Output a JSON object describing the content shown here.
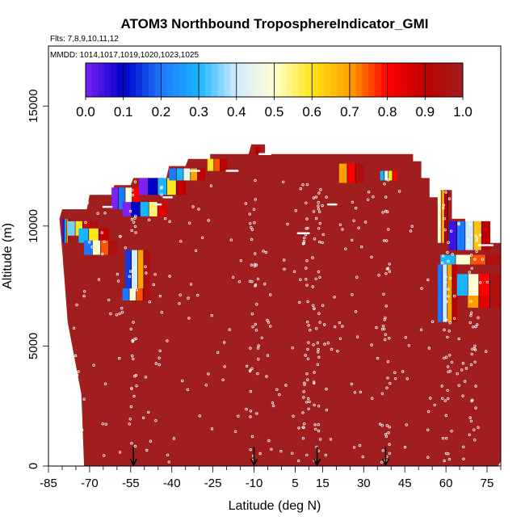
{
  "chart_data": {
    "type": "heatmap",
    "title": "ATOM3 Northbound TroposphereIndicator_GMI",
    "flights_note": "Flts: 7,8,9,10,11,12",
    "dates_note": "MMDD: 1014,1017,1019,1020,1023,1025",
    "xlabel": "Latitude (deg N)",
    "ylabel": "Altitude (m)",
    "xlim": [
      -85,
      80
    ],
    "ylim": [
      0,
      17500
    ],
    "x_ticks": [
      -85,
      -70,
      -55,
      -40,
      -25,
      -10,
      5,
      15,
      30,
      45,
      60,
      75
    ],
    "y_ticks": [
      0,
      5000,
      10000,
      15000
    ],
    "colorbar": {
      "ticks": [
        "0.0",
        "0.1",
        "0.2",
        "0.3",
        "0.4",
        "0.5",
        "0.6",
        "0.7",
        "0.8",
        "0.9",
        "1.0"
      ],
      "range": [
        0,
        1
      ],
      "colors": [
        "#7b22f5",
        "#0000c8",
        "#1e78ff",
        "#19b4ff",
        "#d2ebff",
        "#ffffd2",
        "#ffe619",
        "#ffa000",
        "#ff0000",
        "#be0000",
        "#a01e1e"
      ]
    },
    "background_value": 1.0,
    "background_color": "#a01e1e",
    "profile_color": "#ffffff",
    "arrow_latitudes": [
      -54,
      -10,
      13,
      38
    ],
    "color_bands": [
      {
        "lat": [
          -80,
          -77
        ],
        "alt": [
          10300,
          9300
        ],
        "values": [
          0.05,
          0.3,
          0.7,
          0.95
        ]
      },
      {
        "lat": [
          -78,
          -67
        ],
        "alt": [
          10200,
          9600
        ],
        "values": [
          0.35,
          0.6,
          0.85,
          0.95
        ]
      },
      {
        "lat": [
          -74,
          -63
        ],
        "alt": [
          9900,
          9300
        ],
        "values": [
          0.3,
          0.6,
          0.9
        ]
      },
      {
        "lat": [
          -72,
          -60
        ],
        "alt": [
          9400,
          8800
        ],
        "values": [
          0.2,
          0.5,
          0.75,
          0.95
        ]
      },
      {
        "lat": [
          -62,
          -52
        ],
        "alt": [
          11600,
          10700
        ],
        "values": [
          0.0,
          0.2,
          0.5,
          0.8
        ]
      },
      {
        "lat": [
          -58,
          -42
        ],
        "alt": [
          11000,
          10400
        ],
        "values": [
          0.0,
          0.1,
          0.3,
          0.55,
          0.85
        ]
      },
      {
        "lat": [
          -57,
          -48
        ],
        "alt": [
          9000,
          7400
        ],
        "values": [
          0.15,
          0.4,
          0.7,
          0.95
        ]
      },
      {
        "lat": [
          -58,
          -48
        ],
        "alt": [
          7400,
          6900
        ],
        "values": [
          0.2,
          0.5,
          0.75,
          0.95
        ]
      },
      {
        "lat": [
          -52,
          -35
        ],
        "alt": [
          12000,
          11300
        ],
        "values": [
          0.0,
          0.1,
          0.3,
          0.6,
          0.9
        ]
      },
      {
        "lat": [
          -41,
          -28
        ],
        "alt": [
          12400,
          11900
        ],
        "values": [
          0.2,
          0.3,
          0.45,
          0.7,
          0.9
        ]
      },
      {
        "lat": [
          -27,
          -20
        ],
        "alt": [
          12800,
          12300
        ],
        "values": [
          0.6,
          0.75,
          0.9
        ]
      },
      {
        "lat": [
          -10,
          -8
        ],
        "alt": [
          13300,
          13000
        ],
        "values": [
          0.85,
          0.9
        ]
      },
      {
        "lat": [
          21,
          30
        ],
        "alt": [
          12600,
          11800
        ],
        "values": [
          0.7,
          0.8,
          0.95
        ]
      },
      {
        "lat": [
          36,
          42
        ],
        "alt": [
          12300,
          11900
        ],
        "values": [
          0.3,
          0.45,
          0.6,
          0.8
        ]
      },
      {
        "lat": [
          57,
          62
        ],
        "alt": [
          11500,
          9300
        ],
        "values": [
          0.5,
          0.7,
          0.9,
          1.0
        ]
      },
      {
        "lat": [
          61,
          76
        ],
        "alt": [
          10200,
          9000
        ],
        "values": [
          0.05,
          0.2,
          0.4,
          0.65,
          0.9
        ]
      },
      {
        "lat": [
          58,
          80
        ],
        "alt": [
          8800,
          8400
        ],
        "values": [
          0.3,
          0.5,
          0.75,
          0.95
        ]
      },
      {
        "lat": [
          57,
          64
        ],
        "alt": [
          8400,
          6000
        ],
        "values": [
          0.2,
          0.4,
          0.7,
          0.9
        ]
      },
      {
        "lat": [
          64,
          80
        ],
        "alt": [
          8000,
          7100
        ],
        "values": [
          0.3,
          0.5,
          0.8,
          0.95
        ]
      },
      {
        "lat": [
          68,
          80
        ],
        "alt": [
          7100,
          6600
        ],
        "values": [
          0.7,
          0.85,
          0.95
        ]
      }
    ]
  }
}
